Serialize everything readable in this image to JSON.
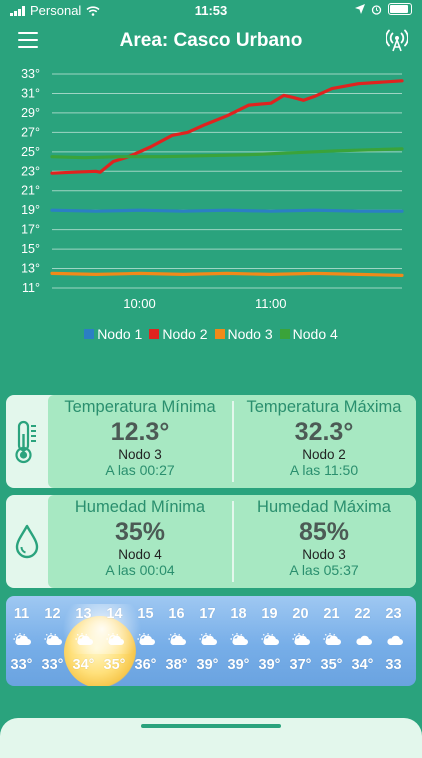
{
  "status_bar": {
    "carrier": "Personal",
    "time": "11:53"
  },
  "header": {
    "title": "Area: Casco Urbano"
  },
  "chart_data": {
    "type": "line",
    "y_ticks": [
      "33°",
      "31°",
      "29°",
      "27°",
      "25°",
      "23°",
      "21°",
      "19°",
      "17°",
      "15°",
      "13°",
      "11°"
    ],
    "ylim": [
      11,
      33
    ],
    "x_ticks": [
      {
        "label": "10:00",
        "t": 40
      },
      {
        "label": "11:00",
        "t": 100
      }
    ],
    "xlim": [
      0,
      160
    ],
    "series": [
      {
        "name": "Nodo 1",
        "color": "#2b7fc4",
        "points": [
          [
            0,
            19
          ],
          [
            20,
            18.9
          ],
          [
            40,
            19
          ],
          [
            60,
            18.9
          ],
          [
            80,
            19
          ],
          [
            100,
            18.9
          ],
          [
            120,
            19
          ],
          [
            140,
            18.9
          ],
          [
            160,
            18.9
          ]
        ]
      },
      {
        "name": "Nodo 2",
        "color": "#e0231f",
        "points": [
          [
            0,
            22.8
          ],
          [
            10,
            22.9
          ],
          [
            20,
            23
          ],
          [
            22,
            22.9
          ],
          [
            28,
            24
          ],
          [
            35,
            24.5
          ],
          [
            45,
            25.5
          ],
          [
            55,
            26.7
          ],
          [
            62,
            27
          ],
          [
            70,
            27.8
          ],
          [
            80,
            28.7
          ],
          [
            90,
            29.8
          ],
          [
            100,
            30
          ],
          [
            106,
            30.8
          ],
          [
            110,
            30.6
          ],
          [
            115,
            30.3
          ],
          [
            120,
            30.7
          ],
          [
            128,
            31.5
          ],
          [
            140,
            32
          ],
          [
            160,
            32.3
          ]
        ]
      },
      {
        "name": "Nodo 3",
        "color": "#f08a19",
        "points": [
          [
            0,
            12.5
          ],
          [
            20,
            12.4
          ],
          [
            40,
            12.5
          ],
          [
            60,
            12.4
          ],
          [
            80,
            12.5
          ],
          [
            100,
            12.4
          ],
          [
            120,
            12.5
          ],
          [
            140,
            12.4
          ],
          [
            160,
            12.3
          ]
        ]
      },
      {
        "name": "Nodo 4",
        "color": "#3aa33a",
        "points": [
          [
            0,
            24.5
          ],
          [
            15,
            24.4
          ],
          [
            30,
            24.5
          ],
          [
            50,
            24.5
          ],
          [
            70,
            24.6
          ],
          [
            90,
            24.7
          ],
          [
            110,
            24.9
          ],
          [
            130,
            25.1
          ],
          [
            160,
            25.3
          ]
        ]
      }
    ],
    "legend_position": "bottom"
  },
  "temperature": {
    "min": {
      "label": "Temperatura Mínima",
      "value": "12.3°",
      "node": "Nodo 3",
      "time": "A las 00:27"
    },
    "max": {
      "label": "Temperatura Máxima",
      "value": "32.3°",
      "node": "Nodo 2",
      "time": "A las 11:50"
    }
  },
  "humidity": {
    "min": {
      "label": "Humedad Mínima",
      "value": "35%",
      "node": "Nodo 4",
      "time": "A las 00:04"
    },
    "max": {
      "label": "Humedad Máxima",
      "value": "85%",
      "node": "Nodo 3",
      "time": "A las 05:37"
    }
  },
  "forecast": {
    "hours": [
      "11",
      "12",
      "13",
      "14",
      "15",
      "16",
      "17",
      "18",
      "19",
      "20",
      "21",
      "22",
      "23"
    ],
    "temps": [
      "33°",
      "33°",
      "34°",
      "35°",
      "36°",
      "38°",
      "39°",
      "39°",
      "39°",
      "37°",
      "35°",
      "34°",
      "33"
    ],
    "icons": [
      "partly-cloudy-icon",
      "partly-cloudy-icon",
      "partly-cloudy-icon",
      "partly-cloudy-icon",
      "partly-cloudy-icon",
      "partly-cloudy-icon",
      "partly-cloudy-icon",
      "partly-cloudy-icon",
      "partly-cloudy-icon",
      "partly-cloudy-icon",
      "partly-cloudy-icon",
      "cloudy-icon",
      "cloudy-icon"
    ]
  },
  "colors": {
    "background": "#2aa37d",
    "card_light": "#e3f7ec",
    "card_inner": "#a7e8c2",
    "accent_text": "#2a8f6e"
  }
}
